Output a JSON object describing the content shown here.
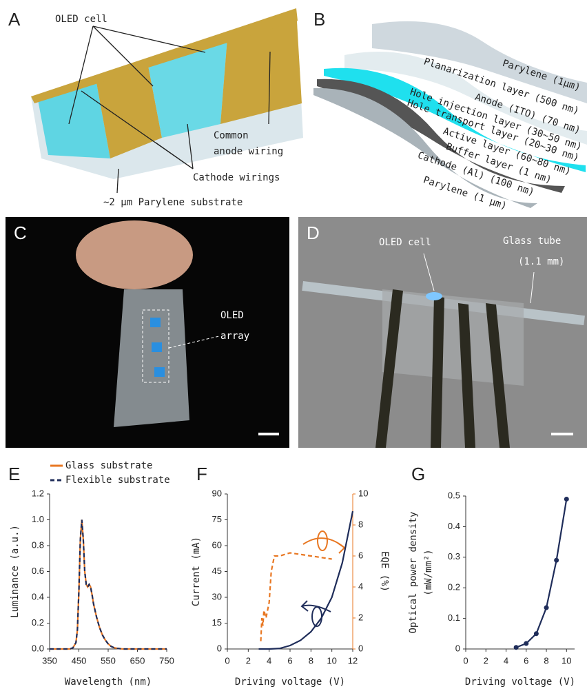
{
  "panel_a": {
    "label": "A",
    "oled_cell": "OLED cell",
    "anode_wiring": [
      "Common",
      "anode wiring"
    ],
    "cathode_wirings": "Cathode wirings",
    "substrate": "~2 μm Parylene substrate"
  },
  "panel_b": {
    "label": "B",
    "layers": [
      "Parylene (1μm)",
      "Planarization layer (500 nm)",
      "Anode (ITO) (70 nm)",
      "Hole injection layer (30∼50 nm)",
      "Hole transport layer (20∼30 nm)",
      "Active layer (60∼80 nm)",
      "Buffer layer (1 nm)",
      "Cathode (Al) (100 nm)",
      "Parylene (1 μm)"
    ]
  },
  "panel_c": {
    "label": "C",
    "annotation": [
      "OLED",
      "array"
    ]
  },
  "panel_d": {
    "label": "D",
    "oled_cell": "OLED cell",
    "glass_tube": [
      "Glass tube",
      "(1.1 mm)"
    ]
  },
  "chart_data": [
    {
      "type": "line",
      "panel": "E",
      "xlabel": "Wavelength (nm)",
      "ylabel": "Luminance (a.u.)",
      "x": [
        350,
        400,
        420,
        430,
        440,
        445,
        450,
        455,
        460,
        465,
        470,
        475,
        480,
        485,
        490,
        495,
        500,
        510,
        520,
        530,
        540,
        550,
        560,
        570,
        580,
        600,
        650,
        700,
        750
      ],
      "series": [
        {
          "name": "Glass substrate",
          "color": "#e87722",
          "line_style": "solid",
          "values": [
            0,
            0,
            0,
            0.01,
            0.05,
            0.15,
            0.45,
            0.85,
            1.0,
            0.85,
            0.6,
            0.5,
            0.48,
            0.5,
            0.48,
            0.42,
            0.35,
            0.25,
            0.17,
            0.11,
            0.07,
            0.04,
            0.02,
            0.01,
            0.005,
            0,
            0,
            0,
            0
          ]
        },
        {
          "name": "Flexible substrate",
          "color": "#1f2d5a",
          "line_style": "dashed",
          "values": [
            0,
            0,
            0,
            0.01,
            0.05,
            0.15,
            0.45,
            0.85,
            1.0,
            0.85,
            0.6,
            0.5,
            0.48,
            0.5,
            0.48,
            0.42,
            0.35,
            0.25,
            0.17,
            0.11,
            0.07,
            0.04,
            0.02,
            0.01,
            0.005,
            0,
            0,
            0,
            0
          ]
        }
      ],
      "xlim": [
        350,
        750
      ],
      "xticks": [
        350,
        450,
        550,
        650,
        750
      ],
      "ylim": [
        0,
        1.2
      ],
      "yticks": [
        {
          "value": 0,
          "label": "0.0"
        },
        0.2,
        0.4,
        0.6,
        0.8,
        {
          "value": 1,
          "label": "1.0"
        },
        1.2
      ],
      "legend": "top-left"
    },
    {
      "type": "line",
      "panel": "F",
      "xlabel": "Driving voltage (V)",
      "ylabel": "Current (mA)",
      "y2label": "EQE (%)",
      "series": [
        {
          "color": "#1f2d5a",
          "line_style": "solid",
          "x": [
            3,
            4,
            5,
            6,
            7,
            8,
            9,
            10,
            11,
            12
          ],
          "values": [
            0,
            0,
            0.3,
            2,
            5,
            10,
            18,
            30,
            50,
            80
          ]
        },
        {
          "color": "#e87722",
          "line_style": "dashed",
          "axis": "y2",
          "x": [
            3.2,
            3.3,
            3.4,
            3.5,
            3.7,
            4,
            4.2,
            4.5,
            5,
            6,
            7,
            8,
            9,
            10
          ],
          "values": [
            0.5,
            2,
            1.5,
            2.5,
            2,
            3,
            5,
            6,
            6,
            6.2,
            6.1,
            6,
            5.9,
            5.8
          ]
        }
      ],
      "xlim": [
        0,
        12
      ],
      "xticks": [
        0,
        2,
        4,
        6,
        8,
        10,
        12
      ],
      "ylim": [
        0,
        90
      ],
      "yticks": [
        0,
        15,
        30,
        45,
        60,
        75,
        90
      ],
      "y2lim": [
        0,
        10
      ],
      "y2ticks": [
        0,
        2,
        4,
        6,
        8,
        10
      ]
    },
    {
      "type": "line",
      "panel": "G",
      "xlabel": "Driving voltage (V)",
      "ylabel": [
        "Optical power density",
        "(mW/mm²)"
      ],
      "x": [
        5,
        6,
        7,
        8,
        9,
        10
      ],
      "series": [
        {
          "color": "#1f2d5a",
          "line_style": "solid",
          "values": [
            0.005,
            0.018,
            0.05,
            0.135,
            0.29,
            0.49
          ]
        }
      ],
      "markers": true,
      "xlim": [
        0,
        10.8
      ],
      "xticks": [
        0,
        2,
        4,
        6,
        8,
        10
      ],
      "ylim": [
        0,
        0.5
      ],
      "yticks": [
        0,
        0.1,
        0.2,
        0.3,
        0.4,
        0.5
      ]
    }
  ]
}
